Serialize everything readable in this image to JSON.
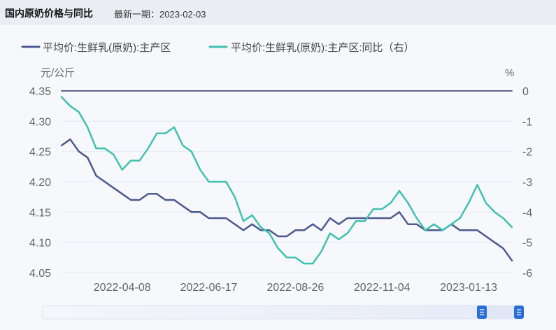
{
  "header": {
    "title": "国内原奶价格与同比",
    "subtitle": "最新一期：2023-02-03"
  },
  "chart_data": {
    "type": "line",
    "y_left_unit": "元/公斤",
    "y_right_unit": "%",
    "y_left_range": [
      4.05,
      4.35
    ],
    "y_left_ticks": [
      "4.35",
      "4.30",
      "4.25",
      "4.20",
      "4.15",
      "4.10",
      "4.05"
    ],
    "y_right_range": [
      -6,
      0
    ],
    "y_right_ticks": [
      "0",
      "-1",
      "-2",
      "-3",
      "-4",
      "-5",
      "-6"
    ],
    "x_tick_labels": [
      "2022-04-08",
      "2022-06-17",
      "2022-08-26",
      "2022-11-04",
      "2023-01-13"
    ],
    "x_tick_index": [
      7,
      17,
      27,
      37,
      47
    ],
    "legend_position": "top-left",
    "grid": true,
    "series": [
      {
        "name": "平均价:生鲜乳(原奶):主产区",
        "axis": "left",
        "color": "#4d5a8f",
        "values": [
          4.26,
          4.27,
          4.25,
          4.24,
          4.21,
          4.2,
          4.19,
          4.18,
          4.17,
          4.17,
          4.18,
          4.18,
          4.17,
          4.17,
          4.16,
          4.15,
          4.15,
          4.14,
          4.14,
          4.14,
          4.13,
          4.12,
          4.13,
          4.12,
          4.12,
          4.11,
          4.11,
          4.12,
          4.12,
          4.13,
          4.12,
          4.14,
          4.13,
          4.14,
          4.14,
          4.14,
          4.14,
          4.14,
          4.14,
          4.15,
          4.13,
          4.13,
          4.12,
          4.12,
          4.12,
          4.13,
          4.12,
          4.12,
          4.12,
          4.11,
          4.1,
          4.09,
          4.07
        ]
      },
      {
        "name": "平均价:生鲜乳(原奶):主产区:同比（右）",
        "axis": "right",
        "color": "#3fc2b0",
        "values": [
          -0.2,
          -0.5,
          -0.7,
          -1.2,
          -1.9,
          -1.9,
          -2.1,
          -2.6,
          -2.3,
          -2.3,
          -1.9,
          -1.4,
          -1.4,
          -1.2,
          -1.8,
          -2.0,
          -2.6,
          -3.0,
          -3.0,
          -3.0,
          -3.5,
          -4.3,
          -4.1,
          -4.5,
          -4.7,
          -5.2,
          -5.5,
          -5.5,
          -5.7,
          -5.7,
          -5.3,
          -4.7,
          -4.9,
          -4.7,
          -4.3,
          -4.3,
          -3.9,
          -3.9,
          -3.7,
          -3.3,
          -3.7,
          -4.2,
          -4.6,
          -4.4,
          -4.6,
          -4.4,
          -4.2,
          -3.7,
          -3.1,
          -3.7,
          -4.0,
          -4.2,
          -4.5
        ]
      },
      {
        "name": "",
        "axis": "right",
        "color": "#5b6690",
        "values": [
          0,
          0
        ],
        "x_index": [
          0,
          52
        ]
      }
    ]
  }
}
